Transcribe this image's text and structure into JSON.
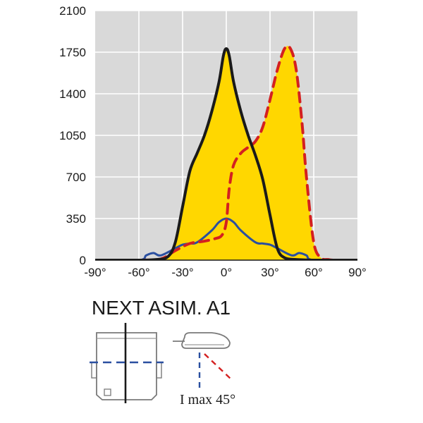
{
  "chart_data": {
    "type": "line",
    "title": "",
    "xlabel": "",
    "ylabel": "",
    "xlim": [
      -90,
      90
    ],
    "ylim": [
      0,
      2100
    ],
    "x_ticks": [
      -90,
      -60,
      -30,
      0,
      30,
      60,
      90
    ],
    "x_tick_labels": [
      "-90°",
      "-60°",
      "-30°",
      "0°",
      "30°",
      "60°",
      "90°"
    ],
    "y_ticks": [
      0,
      350,
      700,
      1050,
      1400,
      1750,
      2100
    ],
    "y_tick_labels": [
      "0",
      "350",
      "700",
      "1050",
      "1400",
      "1750",
      "2100"
    ],
    "grid": true,
    "colors": {
      "plot_bg": "#d9d9d9",
      "grid": "#ffffff",
      "fill": "#ffd700",
      "black_curve": "#1a1a1a",
      "red_curve": "#d42020",
      "blue_curve": "#2a4fa0"
    },
    "series": [
      {
        "style": "solid-black",
        "x": [
          -90,
          -60,
          -48,
          -40,
          -35,
          -30,
          -25,
          -20,
          -15,
          -10,
          -5,
          -2,
          0,
          2,
          5,
          10,
          15,
          20,
          25,
          30,
          35,
          40,
          48,
          60,
          90
        ],
        "y": [
          0,
          0,
          5,
          30,
          150,
          450,
          750,
          900,
          1050,
          1250,
          1500,
          1720,
          1780,
          1720,
          1500,
          1250,
          1050,
          880,
          680,
          380,
          100,
          20,
          5,
          0,
          0
        ]
      },
      {
        "style": "dashed-red",
        "x": [
          -90,
          -60,
          -45,
          -35,
          -25,
          -15,
          -8,
          -3,
          0,
          2,
          5,
          10,
          15,
          20,
          25,
          30,
          35,
          40,
          44,
          48,
          52,
          55,
          60,
          65,
          70,
          75,
          90
        ],
        "y": [
          0,
          0,
          10,
          80,
          140,
          160,
          180,
          210,
          320,
          600,
          800,
          900,
          950,
          1000,
          1120,
          1350,
          1600,
          1780,
          1780,
          1600,
          1150,
          700,
          150,
          20,
          5,
          0,
          0
        ]
      },
      {
        "style": "solid-blue",
        "x": [
          -90,
          -60,
          -55,
          -50,
          -45,
          -35,
          -30,
          -25,
          -20,
          -10,
          -5,
          0,
          5,
          10,
          20,
          25,
          30,
          35,
          45,
          50,
          55,
          60,
          90
        ],
        "y": [
          0,
          0,
          40,
          60,
          40,
          100,
          130,
          140,
          150,
          250,
          320,
          350,
          320,
          250,
          150,
          140,
          130,
          100,
          40,
          60,
          40,
          0,
          0
        ]
      }
    ]
  },
  "caption": {
    "title": "NEXT ASIM. A1",
    "imax": "I max 45°"
  }
}
